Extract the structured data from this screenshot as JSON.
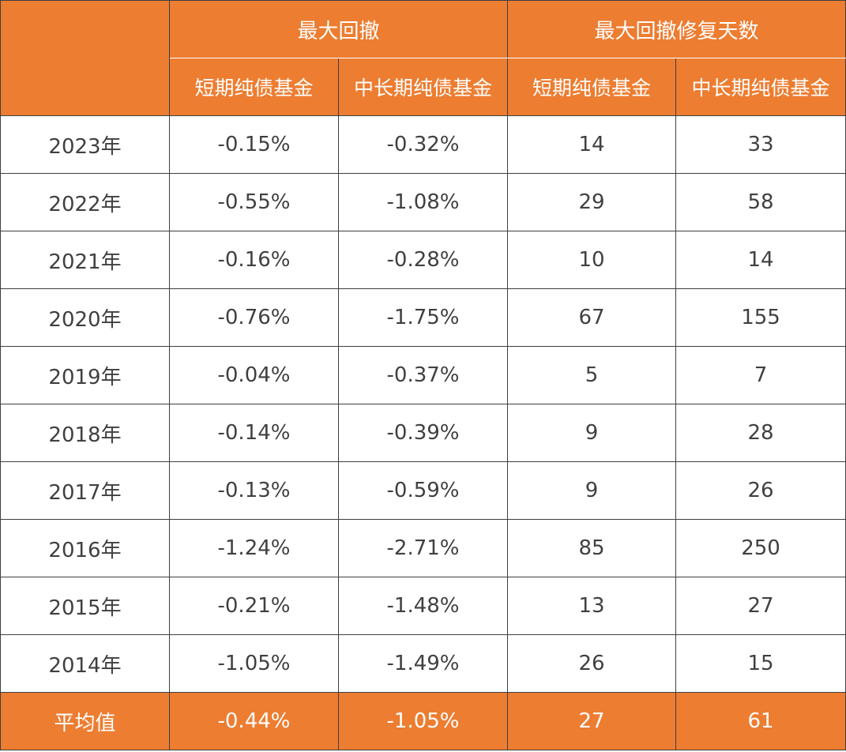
{
  "table": {
    "header": {
      "corner": "",
      "group_drawdown": "最大回撤",
      "group_recovery": "最大回撤修复天数",
      "sub_labels": [
        "短期纯债基金",
        "中长期纯债基金",
        "短期纯债基金",
        "中长期纯债基金"
      ]
    },
    "rows": [
      [
        "2023年",
        "-0.15%",
        "-0.32%",
        "14",
        "33"
      ],
      [
        "2022年",
        "-0.55%",
        "-1.08%",
        "29",
        "58"
      ],
      [
        "2021年",
        "-0.16%",
        "-0.28%",
        "10",
        "14"
      ],
      [
        "2020年",
        "-0.76%",
        "-1.75%",
        "67",
        "155"
      ],
      [
        "2019年",
        "-0.04%",
        "-0.37%",
        "5",
        "7"
      ],
      [
        "2018年",
        "-0.14%",
        "-0.39%",
        "9",
        "28"
      ],
      [
        "2017年",
        "-0.13%",
        "-0.59%",
        "9",
        "26"
      ],
      [
        "2016年",
        "-1.24%",
        "-2.71%",
        "85",
        "250"
      ],
      [
        "2015年",
        "-0.21%",
        "-1.48%",
        "13",
        "27"
      ],
      [
        "2014年",
        "-1.05%",
        "-1.49%",
        "26",
        "15"
      ]
    ],
    "average": [
      "平均值",
      "-0.44%",
      "-1.05%",
      "27",
      "61"
    ]
  },
  "colors": {
    "header_bg": "#ed7d31",
    "header_text": "#ffffff",
    "body_text": "#404040",
    "border": "#3f3f3f"
  }
}
